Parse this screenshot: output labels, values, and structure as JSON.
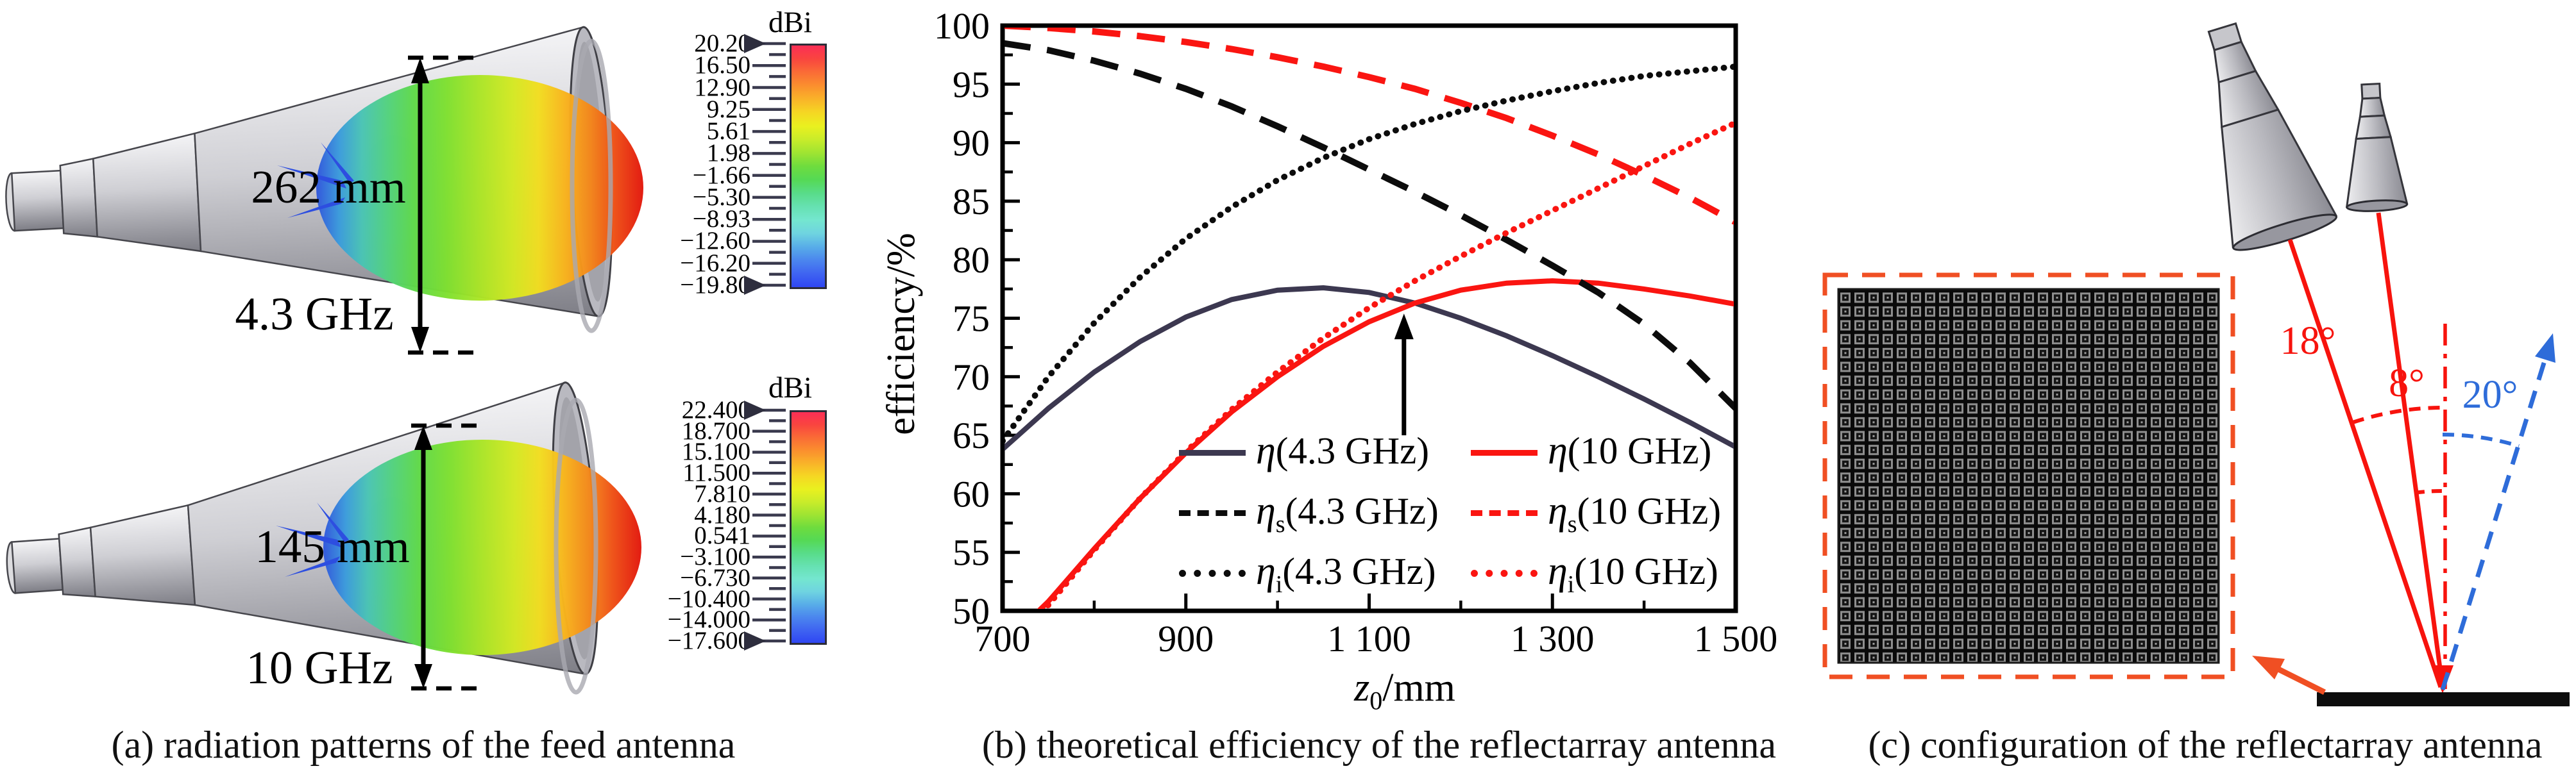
{
  "panel_a": {
    "caption": "(a) radiation patterns of the feed antenna",
    "antenna1": {
      "dimension": "262 mm",
      "frequency": "4.3 GHz"
    },
    "antenna2": {
      "dimension": "145 mm",
      "frequency": "10 GHz"
    },
    "colormap": [
      "#fb2e56",
      "#f9453f",
      "#fa6c36",
      "#fb8f2e",
      "#f9b329",
      "#f5d723",
      "#eaf01f",
      "#c9ec2a",
      "#9fe432",
      "#6edc3e",
      "#55d955",
      "#58dc89",
      "#66e1b1",
      "#74e6cf",
      "#6fd4e0",
      "#58ade8",
      "#4b86ee",
      "#3f64f1",
      "#2f46f2"
    ],
    "colorbar1": {
      "title": "dBi",
      "labels": [
        "20.20",
        "16.50",
        "12.90",
        "9.25",
        "5.61",
        "1.98",
        "−1.66",
        "−5.30",
        "−8.93",
        "−12.60",
        "−16.20",
        "−19.80"
      ]
    },
    "colorbar2": {
      "title": "dBi",
      "labels": [
        "22.400",
        "18.700",
        "15.100",
        "11.500",
        "7.810",
        "4.180",
        "0.541",
        "−3.100",
        "−6.730",
        "−10.400",
        "−14.000",
        "−17.600"
      ]
    }
  },
  "panel_b": {
    "caption": "(b) theoretical efficiency of the reflectarray antenna"
  },
  "chart_data": {
    "type": "line",
    "title": "",
    "xlabel": "z0/mm",
    "xlabel_parts": {
      "base": "z",
      "sub": "0",
      "unit": "/mm"
    },
    "ylabel": "efficiency/%",
    "xlim": [
      700,
      1500
    ],
    "ylim": [
      50,
      100
    ],
    "grid": false,
    "legend_position": "lower right",
    "x_tick_labels": [
      "700",
      "900",
      "1 100",
      "1 300",
      "1 500"
    ],
    "x_major_ticks": [
      700,
      900,
      1100,
      1300,
      1500
    ],
    "x_minor_ticks": [
      800,
      1000,
      1200,
      1400
    ],
    "y_tick_labels": [
      "50",
      "55",
      "60",
      "65",
      "70",
      "75",
      "80",
      "85",
      "90",
      "95",
      "100"
    ],
    "y_major_step": 5,
    "y_minor_step": 2.5,
    "x": [
      700,
      750,
      800,
      850,
      900,
      950,
      1000,
      1050,
      1100,
      1150,
      1200,
      1250,
      1300,
      1350,
      1400,
      1450,
      1500
    ],
    "series": [
      {
        "name": "eta-4.3GHz",
        "sym": "η",
        "sub": "",
        "freq": "(4.3 GHz)",
        "color": "#3c3850",
        "style": "solid",
        "values": [
          63.8,
          67.3,
          70.4,
          73.0,
          75.1,
          76.6,
          77.4,
          77.6,
          77.2,
          76.3,
          75.0,
          73.5,
          71.8,
          70.0,
          68.1,
          66.1,
          64.0
        ]
      },
      {
        "name": "eta-10GHz",
        "sym": "η",
        "sub": "",
        "freq": "(10 GHz)",
        "color": "#fa1511",
        "style": "solid",
        "values": [
          47.0,
          50.8,
          55.3,
          59.6,
          63.5,
          67.0,
          70.0,
          72.6,
          74.7,
          76.3,
          77.4,
          78.0,
          78.2,
          78.0,
          77.5,
          76.9,
          76.2
        ]
      },
      {
        "name": "eta-s-4.3GHz",
        "sym": "η",
        "sub": "s",
        "freq": "(4.3 GHz)",
        "color": "#0c0c0c",
        "style": "dashed",
        "values": [
          98.5,
          97.9,
          97.0,
          95.9,
          94.6,
          93.1,
          91.4,
          89.6,
          87.7,
          85.8,
          83.8,
          81.7,
          79.5,
          77.2,
          74.5,
          71.2,
          67.3
        ]
      },
      {
        "name": "eta-s-10GHz",
        "sym": "η",
        "sub": "s",
        "freq": "(10 GHz)",
        "color": "#fa1511",
        "style": "dashed",
        "values": [
          100,
          99.8,
          99.5,
          99.1,
          98.6,
          98.0,
          97.3,
          96.5,
          95.6,
          94.6,
          93.4,
          92.1,
          90.6,
          89.0,
          87.2,
          85.3,
          83.2
        ]
      },
      {
        "name": "eta-i-4.3GHz",
        "sym": "η",
        "sub": "i",
        "freq": "(4.3 GHz)",
        "color": "#0c0c0c",
        "style": "dotted",
        "values": [
          64.5,
          70.0,
          74.6,
          78.5,
          81.8,
          84.5,
          86.8,
          88.7,
          90.3,
          91.6,
          92.7,
          93.6,
          94.4,
          95.1,
          95.7,
          96.1,
          96.5
        ]
      },
      {
        "name": "eta-i-10GHz",
        "sym": "η",
        "sub": "i",
        "freq": "(10 GHz)",
        "color": "#fa1511",
        "style": "dotted",
        "values": [
          46.5,
          50.5,
          55.2,
          59.6,
          63.6,
          67.2,
          70.4,
          73.3,
          75.9,
          78.2,
          80.3,
          82.3,
          84.2,
          86.1,
          88.0,
          89.9,
          91.7
        ]
      }
    ],
    "annotation_arrow": {
      "x": 1138,
      "y_from": 65.0,
      "y_to": 75.4
    }
  },
  "panel_c": {
    "caption": "(c) configuration of the reflectarray antenna",
    "angles": {
      "feed_large": "18°",
      "feed_small": "8°",
      "beam": "20°"
    },
    "accent_orange": "#f04f23",
    "accent_red": "#f7130d",
    "accent_blue": "#2e6cd9"
  }
}
